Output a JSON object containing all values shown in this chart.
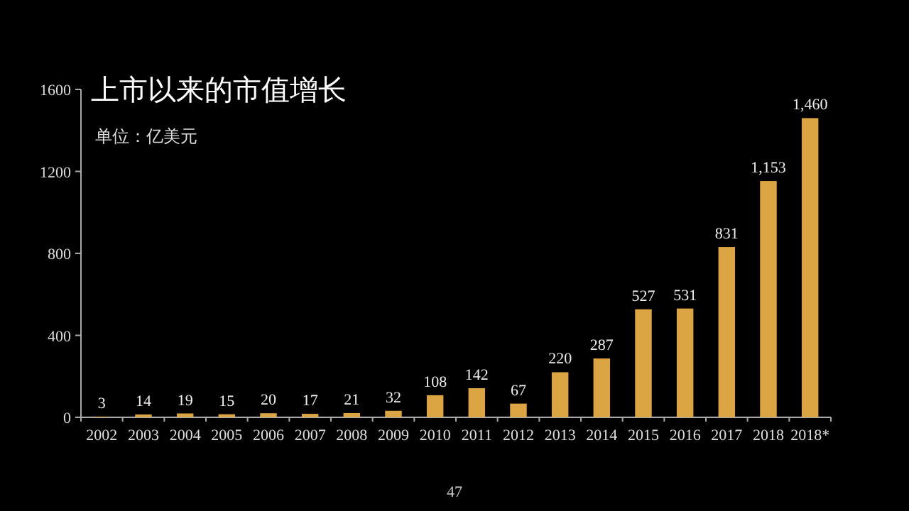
{
  "chart_data": {
    "type": "bar",
    "title": "上市以来的市值增长",
    "subtitle": "单位：亿美元",
    "categories": [
      "2002",
      "2003",
      "2004",
      "2005",
      "2006",
      "2007",
      "2008",
      "2009",
      "2010",
      "2011",
      "2012",
      "2013",
      "2014",
      "2015",
      "2016",
      "2017",
      "2018",
      "2018*"
    ],
    "values": [
      3,
      14,
      19,
      15,
      20,
      17,
      21,
      32,
      108,
      142,
      67,
      220,
      287,
      527,
      531,
      831,
      1153,
      1460
    ],
    "value_labels": [
      "3",
      "14",
      "19",
      "15",
      "20",
      "17",
      "21",
      "32",
      "108",
      "142",
      "67",
      "220",
      "287",
      "527",
      "531",
      "831",
      "1,153",
      "1,460"
    ],
    "color": "#dba543",
    "ylim": [
      0,
      1600
    ],
    "yticks": [
      0,
      400,
      800,
      1200,
      1600
    ],
    "annotations": [
      "47"
    ]
  }
}
